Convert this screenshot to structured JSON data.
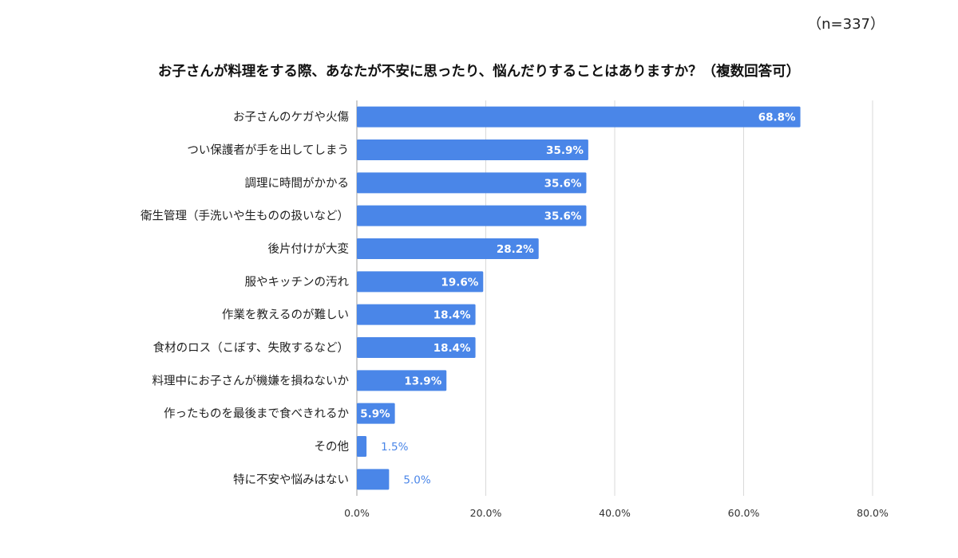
{
  "sample_size": "（n=337）",
  "chart_data": {
    "type": "bar",
    "orientation": "horizontal",
    "title": "お子さんが料理をする際、あなたが不安に思ったり、悩んだりすることはありますか？（複数回答可）",
    "categories": [
      "お子さんのケガや火傷",
      "つい保護者が手を出してしまう",
      "調理に時間がかかる",
      "衛生管理（手洗いや生ものの扱いなど）",
      "後片付けが大変",
      "服やキッチンの汚れ",
      "作業を教えるのが難しい",
      "食材のロス（こぼす、失敗するなど）",
      "料理中にお子さんが機嫌を損ねないか",
      "作ったものを最後まで食べきれるか",
      "その他",
      "特に不安や悩みはない"
    ],
    "values": [
      68.8,
      35.9,
      35.6,
      35.6,
      28.2,
      19.6,
      18.4,
      18.4,
      13.9,
      5.9,
      1.5,
      5.0
    ],
    "value_labels": [
      "68.8%",
      "35.9%",
      "35.6%",
      "35.6%",
      "28.2%",
      "19.6%",
      "18.4%",
      "18.4%",
      "13.9%",
      "5.9%",
      "1.5%",
      "5.0%"
    ],
    "xlim": [
      0,
      80
    ],
    "xticks": [
      0,
      20,
      40,
      60,
      80
    ],
    "xtick_labels": [
      "0.0%",
      "20.0%",
      "40.0%",
      "60.0%",
      "80.0%"
    ],
    "grid": true,
    "legend": "none",
    "bar_color": "#4a86e8",
    "outside_label_color": "#4a86e8"
  }
}
